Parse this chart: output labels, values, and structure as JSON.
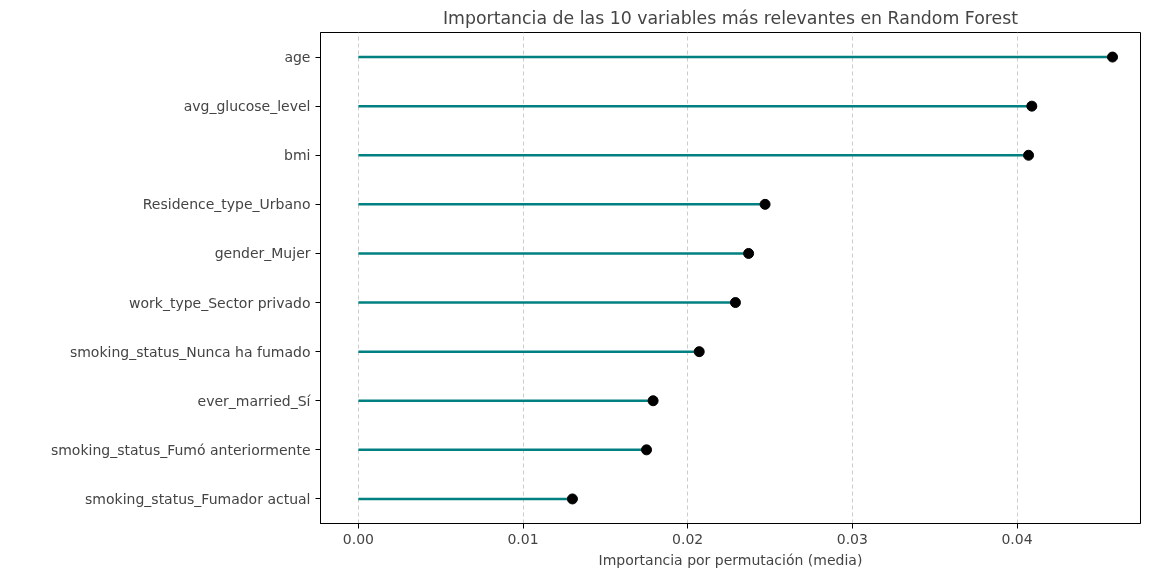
{
  "chart_data": {
    "type": "lollipop",
    "orientation": "horizontal",
    "title": "Importancia de las 10 variables más relevantes en Random Forest",
    "xlabel": "Importancia por permutación (media)",
    "categories": [
      "age",
      "avg_glucose_level",
      "bmi",
      "Residence_type_Urbano",
      "gender_Mujer",
      "work_type_Sector privado",
      "smoking_status_Nunca ha fumado",
      "ever_married_Sí",
      "smoking_status_Fumó anteriormente",
      "smoking_status_Fumador actual"
    ],
    "values": [
      0.0458,
      0.0409,
      0.0407,
      0.0247,
      0.0237,
      0.0229,
      0.0207,
      0.0179,
      0.0175,
      0.013
    ],
    "color": "#008080",
    "colors": [
      "#000000",
      "#000000",
      "#000000",
      "#000000",
      "#000000",
      "#000000",
      "#000000",
      "#000000",
      "#000000",
      "#000000"
    ],
    "marker": "circle",
    "xlim": [
      -0.0023,
      0.0475
    ],
    "xticks": [
      {
        "value": 0,
        "label": "0.00"
      },
      {
        "value": 0.01,
        "label": "0.01"
      },
      {
        "value": 0.02,
        "label": "0.02"
      },
      {
        "value": 0.03,
        "label": "0.03"
      },
      {
        "value": 0.04,
        "label": "0.04"
      }
    ],
    "grid": "x"
  }
}
